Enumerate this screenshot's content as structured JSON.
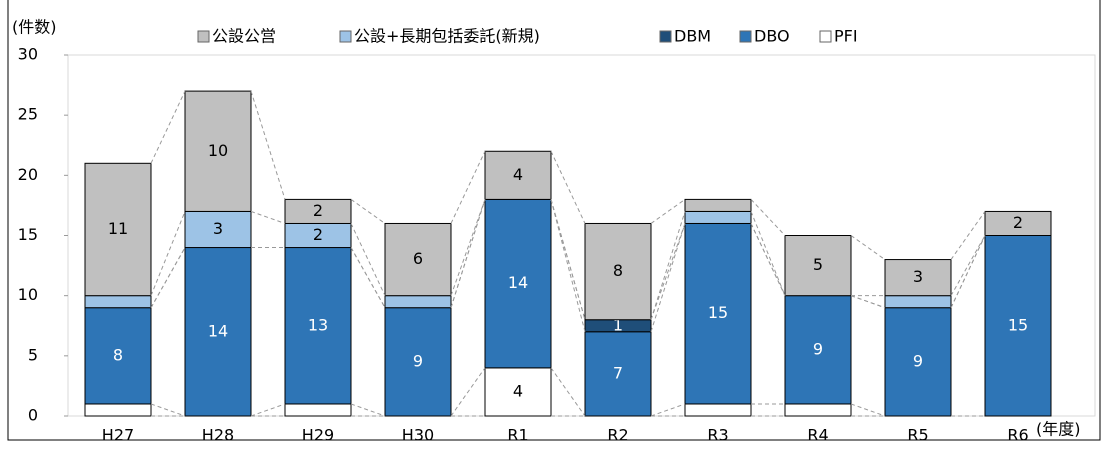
{
  "chart_data": {
    "type": "stacked_bar",
    "y_label": "(件数)",
    "x_label": "(年度)",
    "categories": [
      "H27",
      "H28",
      "H29",
      "H30",
      "R1",
      "R2",
      "R3",
      "R4",
      "R5",
      "R6"
    ],
    "series": [
      {
        "name": "公設公営",
        "color": "#c0c0c0",
        "values": [
          11,
          10,
          2,
          6,
          4,
          8,
          1,
          5,
          3,
          2
        ],
        "value_labels": [
          "11",
          "10",
          "2",
          "6",
          "4",
          "8",
          null,
          "5",
          "3",
          "2"
        ]
      },
      {
        "name": "公設+長期包括委託(新規)",
        "color": "#9dc3e6",
        "values": [
          1,
          3,
          2,
          1,
          0,
          0,
          1,
          0,
          1,
          0
        ],
        "value_labels": [
          null,
          "3",
          "2",
          null,
          null,
          null,
          null,
          null,
          null,
          null
        ]
      },
      {
        "name": "DBM",
        "color": "#1f4e79",
        "values": [
          0,
          0,
          0,
          0,
          0,
          1,
          0,
          0,
          0,
          0
        ],
        "value_labels": [
          null,
          null,
          null,
          null,
          null,
          "1",
          null,
          null,
          null,
          null
        ]
      },
      {
        "name": "DBO",
        "color": "#2e75b6",
        "values": [
          8,
          14,
          13,
          9,
          14,
          7,
          15,
          9,
          9,
          15
        ],
        "value_labels": [
          "8",
          "14",
          "13",
          "9",
          "14",
          "7",
          "15",
          "9",
          "9",
          "15"
        ]
      },
      {
        "name": "PFI",
        "color": "#ffffff",
        "values": [
          1,
          0,
          1,
          0,
          4,
          0,
          1,
          1,
          0,
          0
        ],
        "value_labels": [
          null,
          null,
          null,
          null,
          "4",
          null,
          null,
          null,
          null,
          null
        ]
      }
    ],
    "ylim": [
      0,
      30
    ],
    "yticks": [
      0,
      5,
      10,
      15,
      20,
      25,
      30
    ]
  }
}
